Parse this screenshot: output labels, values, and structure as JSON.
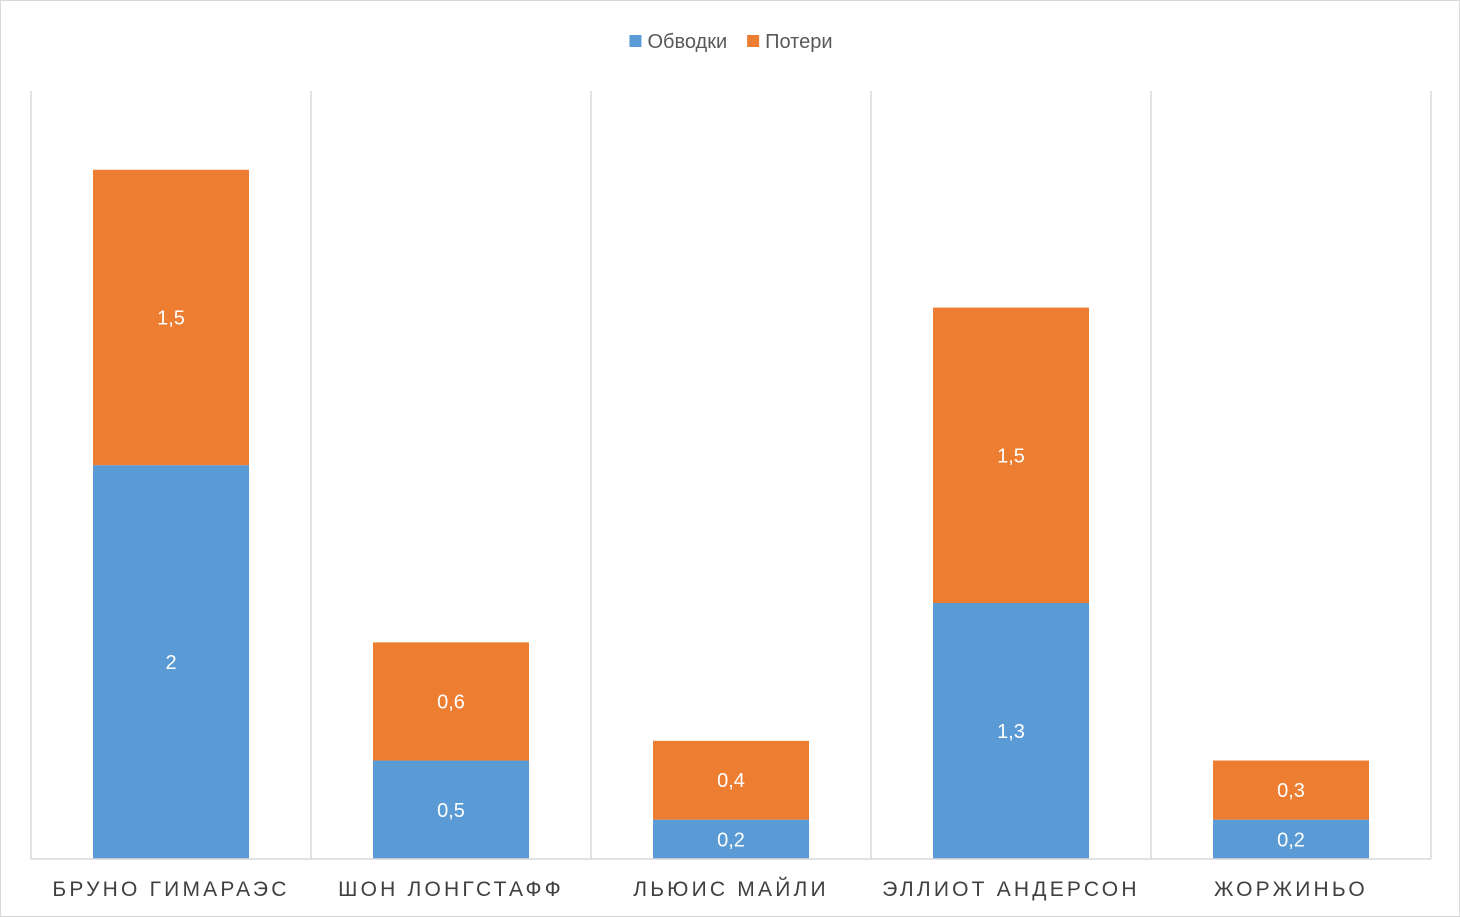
{
  "chart_data": {
    "type": "bar",
    "stacked": true,
    "title": "",
    "xlabel": "",
    "ylabel": "",
    "ylim": [
      0,
      3.9
    ],
    "grid": "vertical category separators",
    "legend": "top",
    "decimal_separator": ",",
    "categories": [
      "БРУНО ГИМАРАЭС",
      "ШОН ЛОНГСТАФФ",
      "ЛЬЮИС МАЙЛИ",
      "ЭЛЛИОТ АНДЕРСОН",
      "ЖОРЖИНЬО"
    ],
    "series": [
      {
        "name": "Обводки",
        "color": "#5b9bd5",
        "values": [
          2,
          0.5,
          0.2,
          1.3,
          0.2
        ],
        "labels": [
          "2",
          "0,5",
          "0,2",
          "1,3",
          "0,2"
        ]
      },
      {
        "name": "Потери",
        "color": "#ed7d31",
        "values": [
          1.5,
          0.6,
          0.4,
          1.5,
          0.3
        ],
        "labels": [
          "1,5",
          "0,6",
          "0,4",
          "1,5",
          "0,3"
        ]
      }
    ]
  }
}
